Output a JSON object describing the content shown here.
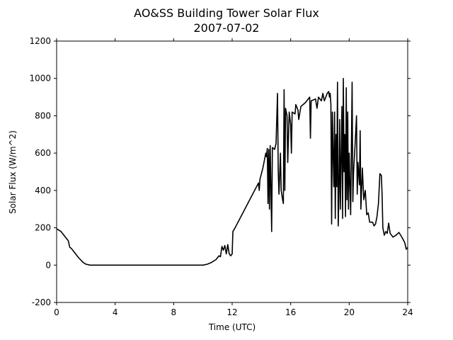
{
  "chart_data": {
    "type": "line",
    "title": "AO&SS Building Tower Solar Flux",
    "subtitle": "2007-07-02",
    "xlabel": "Time (UTC)",
    "ylabel": "Solar Flux (W/m^2)",
    "xlim": [
      0,
      24
    ],
    "xticks": [
      0,
      4,
      8,
      12,
      16,
      20,
      24
    ],
    "ylim": [
      -200,
      1200
    ],
    "yticks": [
      -200,
      0,
      200,
      400,
      600,
      800,
      1000,
      1200
    ],
    "grid": false,
    "series": [
      {
        "color": "#000000",
        "x": [
          0,
          0.3,
          0.6,
          0.8,
          0.9,
          1.0,
          1.2,
          1.5,
          1.8,
          2.0,
          2.3,
          3,
          5,
          7,
          9,
          10,
          10.3,
          10.6,
          10.9,
          11.1,
          11.2,
          11.3,
          11.4,
          11.5,
          11.6,
          11.7,
          11.8,
          11.9,
          12.0,
          12.05,
          12.2,
          12.4,
          12.8,
          13.2,
          13.6,
          13.8,
          13.85,
          13.9,
          14.1,
          14.3,
          14.35,
          14.4,
          14.45,
          14.5,
          14.55,
          14.6,
          14.7,
          14.75,
          14.9,
          15.0,
          15.1,
          15.15,
          15.2,
          15.3,
          15.35,
          15.45,
          15.5,
          15.55,
          15.6,
          15.65,
          15.75,
          15.8,
          15.9,
          16.0,
          16.05,
          16.1,
          16.3,
          16.35,
          16.5,
          16.55,
          16.7,
          17.0,
          17.2,
          17.3,
          17.35,
          17.4,
          17.7,
          17.8,
          17.9,
          18.1,
          18.2,
          18.3,
          18.4,
          18.5,
          18.6,
          18.65,
          18.7,
          18.75,
          18.8,
          18.85,
          18.9,
          18.95,
          19.0,
          19.05,
          19.1,
          19.15,
          19.2,
          19.25,
          19.3,
          19.35,
          19.4,
          19.5,
          19.55,
          19.6,
          19.65,
          19.7,
          19.75,
          19.8,
          19.85,
          19.9,
          19.95,
          20.0,
          20.1,
          20.2,
          20.25,
          20.3,
          20.4,
          20.5,
          20.55,
          20.6,
          20.7,
          20.75,
          20.8,
          20.9,
          21.0,
          21.1,
          21.2,
          21.3,
          21.4,
          21.6,
          21.7,
          21.8,
          21.9,
          22.0,
          22.1,
          22.2,
          22.25,
          22.3,
          22.4,
          22.5,
          22.6,
          22.7,
          22.8,
          23.0,
          23.2,
          23.4,
          23.6,
          23.8,
          23.9,
          24.0
        ],
        "values": [
          195,
          180,
          150,
          130,
          95,
          90,
          70,
          40,
          15,
          5,
          0,
          0,
          0,
          0,
          0,
          0,
          5,
          15,
          30,
          50,
          45,
          100,
          80,
          105,
          60,
          110,
          60,
          50,
          60,
          180,
          200,
          230,
          290,
          350,
          410,
          440,
          400,
          460,
          520,
          600,
          580,
          625,
          330,
          620,
          300,
          640,
          180,
          630,
          620,
          650,
          920,
          500,
          380,
          600,
          400,
          350,
          330,
          940,
          400,
          840,
          800,
          550,
          820,
          750,
          600,
          820,
          810,
          860,
          830,
          780,
          850,
          870,
          890,
          900,
          680,
          880,
          890,
          840,
          900,
          880,
          920,
          880,
          900,
          920,
          930,
          900,
          920,
          860,
          220,
          820,
          600,
          420,
          820,
          250,
          700,
          420,
          980,
          210,
          380,
          780,
          300,
          850,
          250,
          1000,
          500,
          700,
          260,
          950,
          350,
          820,
          300,
          600,
          270,
          980,
          340,
          500,
          640,
          800,
          380,
          550,
          430,
          720,
          300,
          520,
          350,
          400,
          270,
          280,
          230,
          230,
          210,
          220,
          260,
          330,
          490,
          480,
          380,
          200,
          160,
          180,
          170,
          225,
          170,
          150,
          160,
          175,
          150,
          120,
          85,
          95
        ]
      }
    ]
  }
}
